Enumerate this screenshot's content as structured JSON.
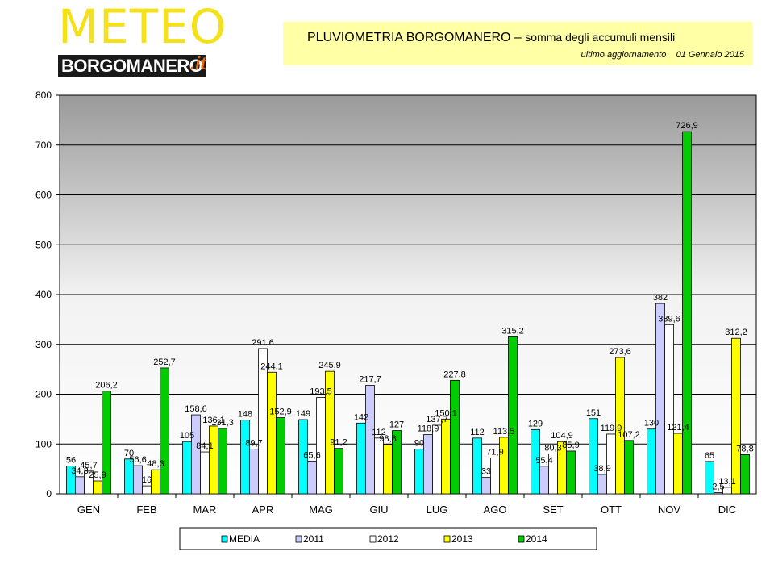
{
  "logo": {
    "meteo": "METEO",
    "city": "BORGOMANERO",
    "tld": ".it"
  },
  "header": {
    "title": "PLUVIOMETRIA BORGOMANERO –",
    "subtitle": "somma degli accumuli mensili",
    "update_label": "ultimo aggiornamento",
    "update_date": "01 Gennaio 2015"
  },
  "chart_data": {
    "type": "bar",
    "categories": [
      "GEN",
      "FEB",
      "MAR",
      "APR",
      "MAG",
      "GIU",
      "LUG",
      "AGO",
      "SET",
      "OTT",
      "NOV",
      "DIC"
    ],
    "ylim": [
      0,
      800
    ],
    "yticks": [
      0,
      100,
      200,
      300,
      400,
      500,
      600,
      700,
      800
    ],
    "grid": true,
    "legend_position": "bottom",
    "series": [
      {
        "name": "MEDIA",
        "color": "#00ffff",
        "values": [
          56,
          70,
          105,
          148,
          149,
          142,
          90,
          112,
          129,
          151,
          130,
          65
        ],
        "labels": [
          "56",
          "70",
          "105",
          "148",
          "149",
          "142",
          "90",
          "112",
          "129",
          "151",
          "130",
          "65"
        ]
      },
      {
        "name": "2011",
        "color": "#ccccff",
        "values": [
          34.3,
          56.6,
          158.6,
          89.7,
          65.6,
          217.7,
          118.9,
          33,
          55.4,
          38.9,
          382,
          2.5
        ],
        "labels": [
          "34,3",
          "56,6",
          "158,6",
          "89,7",
          "65,6",
          "217,7",
          "118,9",
          "33",
          "55,4",
          "38,9",
          "382",
          "2,5"
        ]
      },
      {
        "name": "2012",
        "color": "#ffffff",
        "values": [
          45.7,
          16,
          84.1,
          291.6,
          193.5,
          112,
          137.7,
          71.9,
          80.3,
          119.9,
          339.6,
          13.1
        ],
        "labels": [
          "45,7",
          "16",
          "84,1",
          "291,6",
          "193,5",
          "112",
          "137,7",
          "71,9",
          "80,3",
          "119,9",
          "339,6",
          "13,1"
        ]
      },
      {
        "name": "2013",
        "color": "#ffff00",
        "values": [
          25.9,
          48.3,
          136.1,
          244.1,
          245.9,
          98.8,
          150.1,
          113.5,
          104.9,
          273.6,
          121.4,
          312.2
        ],
        "labels": [
          "25,9",
          "48,3",
          "136,1",
          "244,1",
          "245,9",
          "98,8",
          "150,1",
          "113,5",
          "104,9",
          "273,6",
          "121,4",
          "312,2"
        ]
      },
      {
        "name": "2014",
        "color": "#00cc00",
        "values": [
          206.2,
          252.7,
          131.3,
          152.9,
          91.2,
          127,
          227.8,
          315.2,
          85.9,
          107.2,
          726.9,
          78.8
        ],
        "labels": [
          "206,2",
          "252,7",
          "131,3",
          "152,9",
          "91,2",
          "127",
          "227,8",
          "315,2",
          "85,9",
          "107,2",
          "726,9",
          "78,8"
        ]
      }
    ]
  }
}
